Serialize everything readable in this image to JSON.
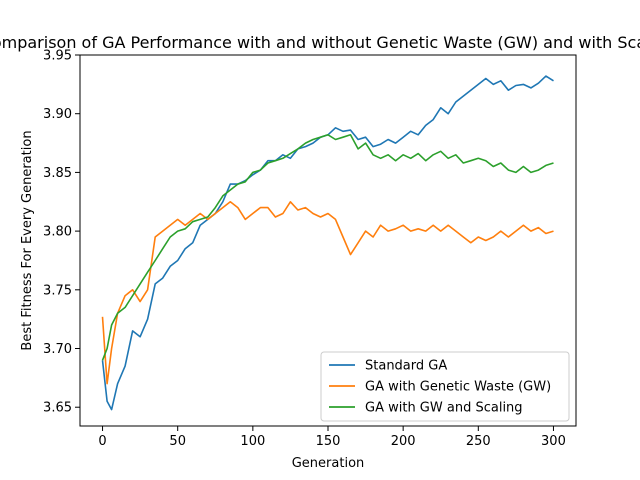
{
  "chart_data": {
    "type": "line",
    "title": "Comparison of GA Performance with and without Genetic Waste (GW) and with Scaling",
    "xlabel": "Generation",
    "ylabel": "Best Fitness For Every Generation",
    "xlim": [
      -15,
      315
    ],
    "ylim": [
      3.634,
      3.95
    ],
    "xticks": [
      0,
      50,
      100,
      150,
      200,
      250,
      300
    ],
    "yticks": [
      3.65,
      3.7,
      3.75,
      3.8,
      3.85,
      3.9,
      3.95
    ],
    "xtick_labels": [
      "0",
      "50",
      "100",
      "150",
      "200",
      "250",
      "300"
    ],
    "ytick_labels": [
      "3.65",
      "3.70",
      "3.75",
      "3.80",
      "3.85",
      "3.90",
      "3.95"
    ],
    "grid": false,
    "legend_position": "lower-right",
    "series": [
      {
        "name": "Standard GA",
        "color": "#1f77b4",
        "x": [
          0,
          3,
          6,
          10,
          15,
          20,
          25,
          30,
          35,
          40,
          45,
          50,
          55,
          60,
          65,
          70,
          75,
          80,
          85,
          90,
          95,
          100,
          105,
          110,
          115,
          120,
          125,
          130,
          135,
          140,
          145,
          150,
          155,
          160,
          165,
          170,
          175,
          180,
          185,
          190,
          195,
          200,
          205,
          210,
          215,
          220,
          225,
          230,
          235,
          240,
          245,
          250,
          255,
          260,
          265,
          270,
          275,
          280,
          285,
          290,
          295,
          300
        ],
        "values": [
          3.69,
          3.655,
          3.648,
          3.67,
          3.685,
          3.715,
          3.71,
          3.725,
          3.755,
          3.76,
          3.77,
          3.775,
          3.785,
          3.79,
          3.805,
          3.81,
          3.815,
          3.825,
          3.84,
          3.84,
          3.843,
          3.848,
          3.852,
          3.86,
          3.86,
          3.865,
          3.862,
          3.87,
          3.872,
          3.875,
          3.88,
          3.882,
          3.888,
          3.885,
          3.886,
          3.878,
          3.88,
          3.872,
          3.874,
          3.878,
          3.875,
          3.88,
          3.885,
          3.882,
          3.89,
          3.895,
          3.905,
          3.9,
          3.91,
          3.915,
          3.92,
          3.925,
          3.93,
          3.925,
          3.928,
          3.92,
          3.924,
          3.925,
          3.922,
          3.926,
          3.932,
          3.928
        ]
      },
      {
        "name": "GA with Genetic Waste (GW)",
        "color": "#ff7f0e",
        "x": [
          0,
          3,
          6,
          10,
          15,
          20,
          25,
          30,
          35,
          40,
          45,
          50,
          55,
          60,
          65,
          70,
          75,
          80,
          85,
          90,
          95,
          100,
          105,
          110,
          115,
          120,
          125,
          130,
          135,
          140,
          145,
          150,
          155,
          160,
          165,
          170,
          175,
          180,
          185,
          190,
          195,
          200,
          205,
          210,
          215,
          220,
          225,
          230,
          235,
          240,
          245,
          250,
          255,
          260,
          265,
          270,
          275,
          280,
          285,
          290,
          295,
          300
        ],
        "values": [
          3.727,
          3.67,
          3.7,
          3.73,
          3.745,
          3.75,
          3.74,
          3.75,
          3.795,
          3.8,
          3.805,
          3.81,
          3.805,
          3.81,
          3.815,
          3.81,
          3.815,
          3.82,
          3.825,
          3.82,
          3.81,
          3.815,
          3.82,
          3.82,
          3.812,
          3.815,
          3.825,
          3.818,
          3.82,
          3.815,
          3.812,
          3.815,
          3.81,
          3.795,
          3.78,
          3.79,
          3.8,
          3.795,
          3.805,
          3.8,
          3.802,
          3.805,
          3.8,
          3.802,
          3.8,
          3.805,
          3.8,
          3.805,
          3.8,
          3.795,
          3.79,
          3.795,
          3.792,
          3.795,
          3.8,
          3.795,
          3.8,
          3.805,
          3.8,
          3.803,
          3.798,
          3.8
        ]
      },
      {
        "name": "GA with GW and Scaling",
        "color": "#2ca02c",
        "x": [
          0,
          3,
          6,
          10,
          15,
          20,
          25,
          30,
          35,
          40,
          45,
          50,
          55,
          60,
          65,
          70,
          75,
          80,
          85,
          90,
          95,
          100,
          105,
          110,
          115,
          120,
          125,
          130,
          135,
          140,
          145,
          150,
          155,
          160,
          165,
          170,
          175,
          180,
          185,
          190,
          195,
          200,
          205,
          210,
          215,
          220,
          225,
          230,
          235,
          240,
          245,
          250,
          255,
          260,
          265,
          270,
          275,
          280,
          285,
          290,
          295,
          300
        ],
        "values": [
          3.69,
          3.7,
          3.72,
          3.73,
          3.735,
          3.745,
          3.755,
          3.765,
          3.775,
          3.785,
          3.795,
          3.8,
          3.802,
          3.808,
          3.81,
          3.812,
          3.82,
          3.83,
          3.835,
          3.84,
          3.842,
          3.85,
          3.852,
          3.858,
          3.86,
          3.862,
          3.866,
          3.87,
          3.875,
          3.878,
          3.88,
          3.882,
          3.878,
          3.88,
          3.882,
          3.87,
          3.875,
          3.865,
          3.862,
          3.865,
          3.86,
          3.865,
          3.862,
          3.866,
          3.86,
          3.865,
          3.868,
          3.862,
          3.865,
          3.858,
          3.86,
          3.862,
          3.86,
          3.855,
          3.858,
          3.852,
          3.85,
          3.855,
          3.85,
          3.852,
          3.856,
          3.858
        ]
      }
    ]
  }
}
